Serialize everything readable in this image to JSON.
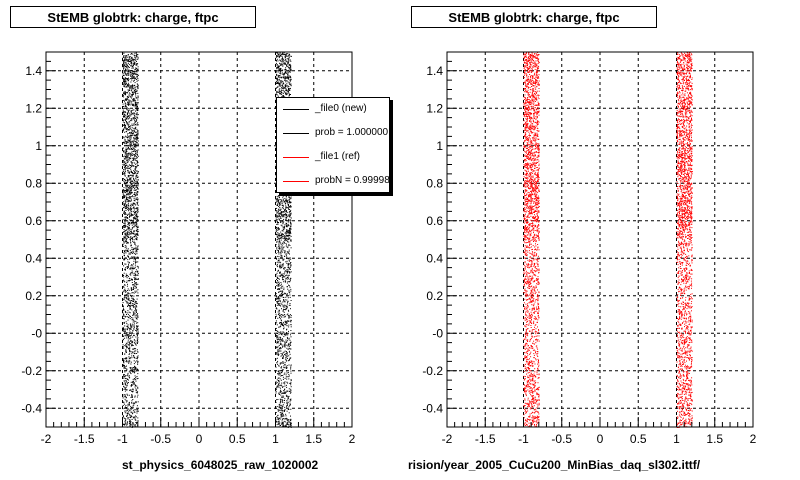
{
  "chart_data": [
    {
      "type": "scatter",
      "title": "StEMB globtrk: charge, ftpc",
      "xlabel": "st_physics_6048025_raw_1020002",
      "ylabel": "",
      "xlim": [
        -2,
        2
      ],
      "ylim": [
        -0.5,
        1.5
      ],
      "x_ticks": [
        "-2",
        "-1.5",
        "-1",
        "-0.5",
        "0",
        "0.5",
        "1",
        "1.5",
        "2"
      ],
      "y_ticks": [
        "-0.4",
        "-0.2",
        "-0",
        "0.2",
        "0.4",
        "0.6",
        "0.8",
        "1",
        "1.2",
        "1.4"
      ],
      "grid": true,
      "legend_position": "top-right",
      "series": [
        {
          "name": "_file0 (new)",
          "color": "#000000",
          "bands": [
            {
              "x_range": [
                -1.0,
                -0.8
              ],
              "y_range": [
                -0.5,
                1.5
              ]
            },
            {
              "x_range": [
                1.0,
                1.2
              ],
              "y_range": [
                -0.5,
                1.5
              ]
            }
          ]
        }
      ],
      "legend": [
        {
          "label": "_file0 (new)",
          "color": "#000000"
        },
        {
          "label": "prob = 1.000000",
          "color": "#000000"
        },
        {
          "label": "_file1 (ref)",
          "color": "#ff0000"
        },
        {
          "label": "probN = 0.99998",
          "color": "#ff0000"
        }
      ]
    },
    {
      "type": "scatter",
      "title": "StEMB globtrk: charge, ftpc",
      "xlabel": "rision/year_2005_CuCu200_MinBias_daq_sl302.ittf/",
      "ylabel": "",
      "xlim": [
        -2,
        2
      ],
      "ylim": [
        -0.5,
        1.5
      ],
      "x_ticks": [
        "-2",
        "-1.5",
        "-1",
        "-0.5",
        "0",
        "0.5",
        "1",
        "1.5",
        "2"
      ],
      "y_ticks": [
        "-0.4",
        "-0.2",
        "-0",
        "0.2",
        "0.4",
        "0.6",
        "0.8",
        "1",
        "1.2",
        "1.4"
      ],
      "grid": true,
      "series": [
        {
          "name": "_file1 (ref)",
          "color": "#ff0000",
          "bands": [
            {
              "x_range": [
                -1.0,
                -0.8
              ],
              "y_range": [
                -0.5,
                1.5
              ]
            },
            {
              "x_range": [
                1.0,
                1.2
              ],
              "y_range": [
                -0.5,
                1.5
              ]
            }
          ]
        }
      ]
    }
  ]
}
